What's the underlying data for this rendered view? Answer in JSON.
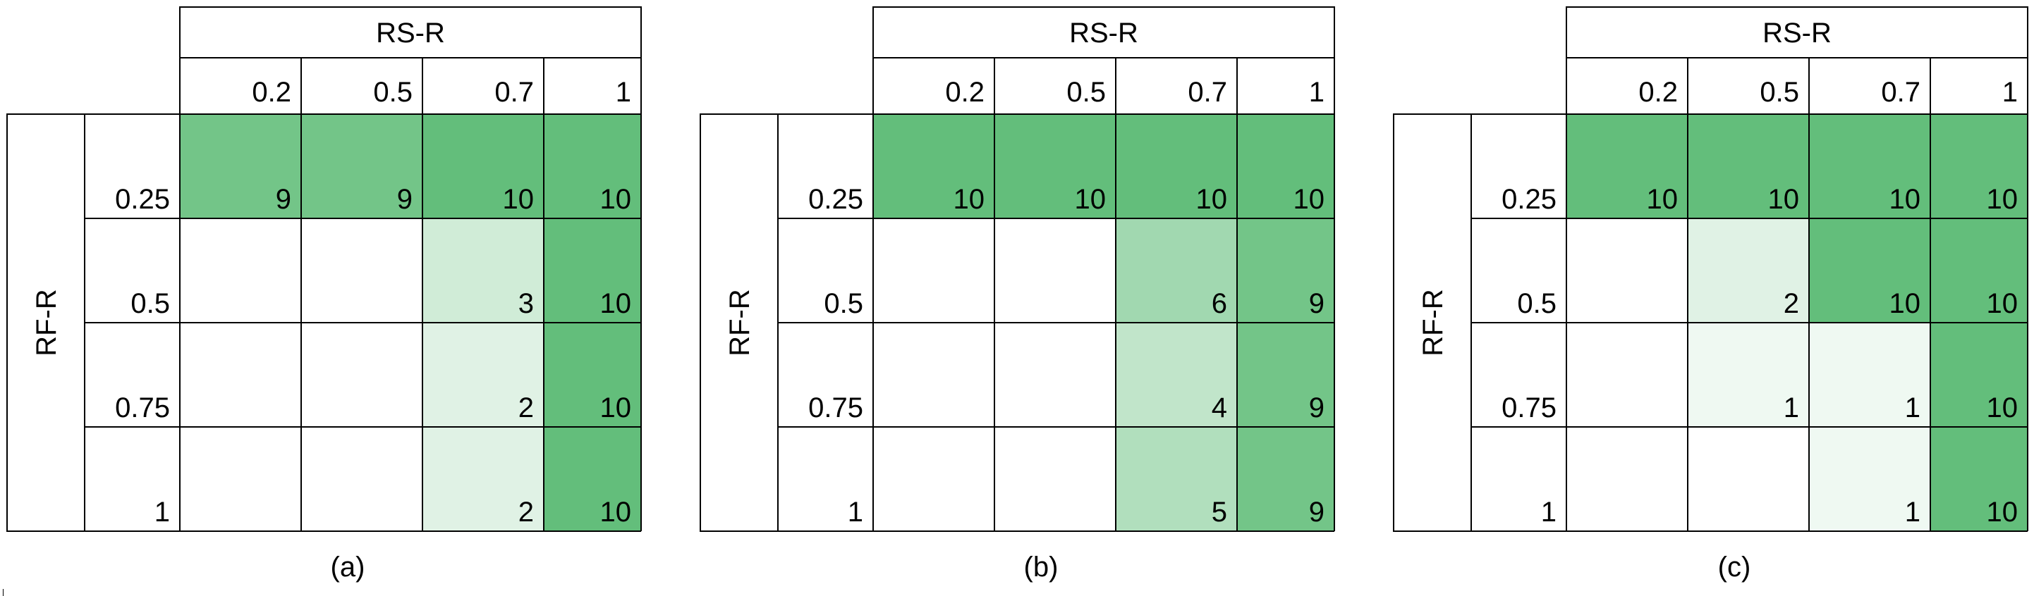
{
  "chart_data": [
    {
      "type": "heatmap",
      "panel_label": "(a)",
      "col_header": "RS-R",
      "row_header": "RF-R",
      "columns": [
        "0.2",
        "0.5",
        "0.7",
        "1"
      ],
      "rows": [
        "0.25",
        "0.5",
        "0.75",
        "1"
      ],
      "values": [
        [
          9,
          9,
          10,
          10
        ],
        [
          null,
          null,
          3,
          10
        ],
        [
          null,
          null,
          2,
          10
        ],
        [
          null,
          null,
          2,
          10
        ]
      ],
      "color_scale": {
        "low": "#ffffff",
        "high": "#63be7b",
        "min": 0,
        "max": 10
      }
    },
    {
      "type": "heatmap",
      "panel_label": "(b)",
      "col_header": "RS-R",
      "row_header": "RF-R",
      "columns": [
        "0.2",
        "0.5",
        "0.7",
        "1"
      ],
      "rows": [
        "0.25",
        "0.5",
        "0.75",
        "1"
      ],
      "values": [
        [
          10,
          10,
          10,
          10
        ],
        [
          null,
          null,
          6,
          9
        ],
        [
          null,
          null,
          4,
          9
        ],
        [
          null,
          null,
          5,
          9
        ]
      ],
      "color_scale": {
        "low": "#ffffff",
        "high": "#63be7b",
        "min": 0,
        "max": 10
      }
    },
    {
      "type": "heatmap",
      "panel_label": "(c)",
      "col_header": "RS-R",
      "row_header": "RF-R",
      "columns": [
        "0.2",
        "0.5",
        "0.7",
        "1"
      ],
      "rows": [
        "0.25",
        "0.5",
        "0.75",
        "1"
      ],
      "values": [
        [
          10,
          10,
          10,
          10
        ],
        [
          null,
          2,
          10,
          10
        ],
        [
          null,
          1,
          1,
          10
        ],
        [
          null,
          null,
          1,
          10
        ]
      ],
      "color_scale": {
        "low": "#ffffff",
        "high": "#63be7b",
        "min": 0,
        "max": 10
      }
    }
  ]
}
